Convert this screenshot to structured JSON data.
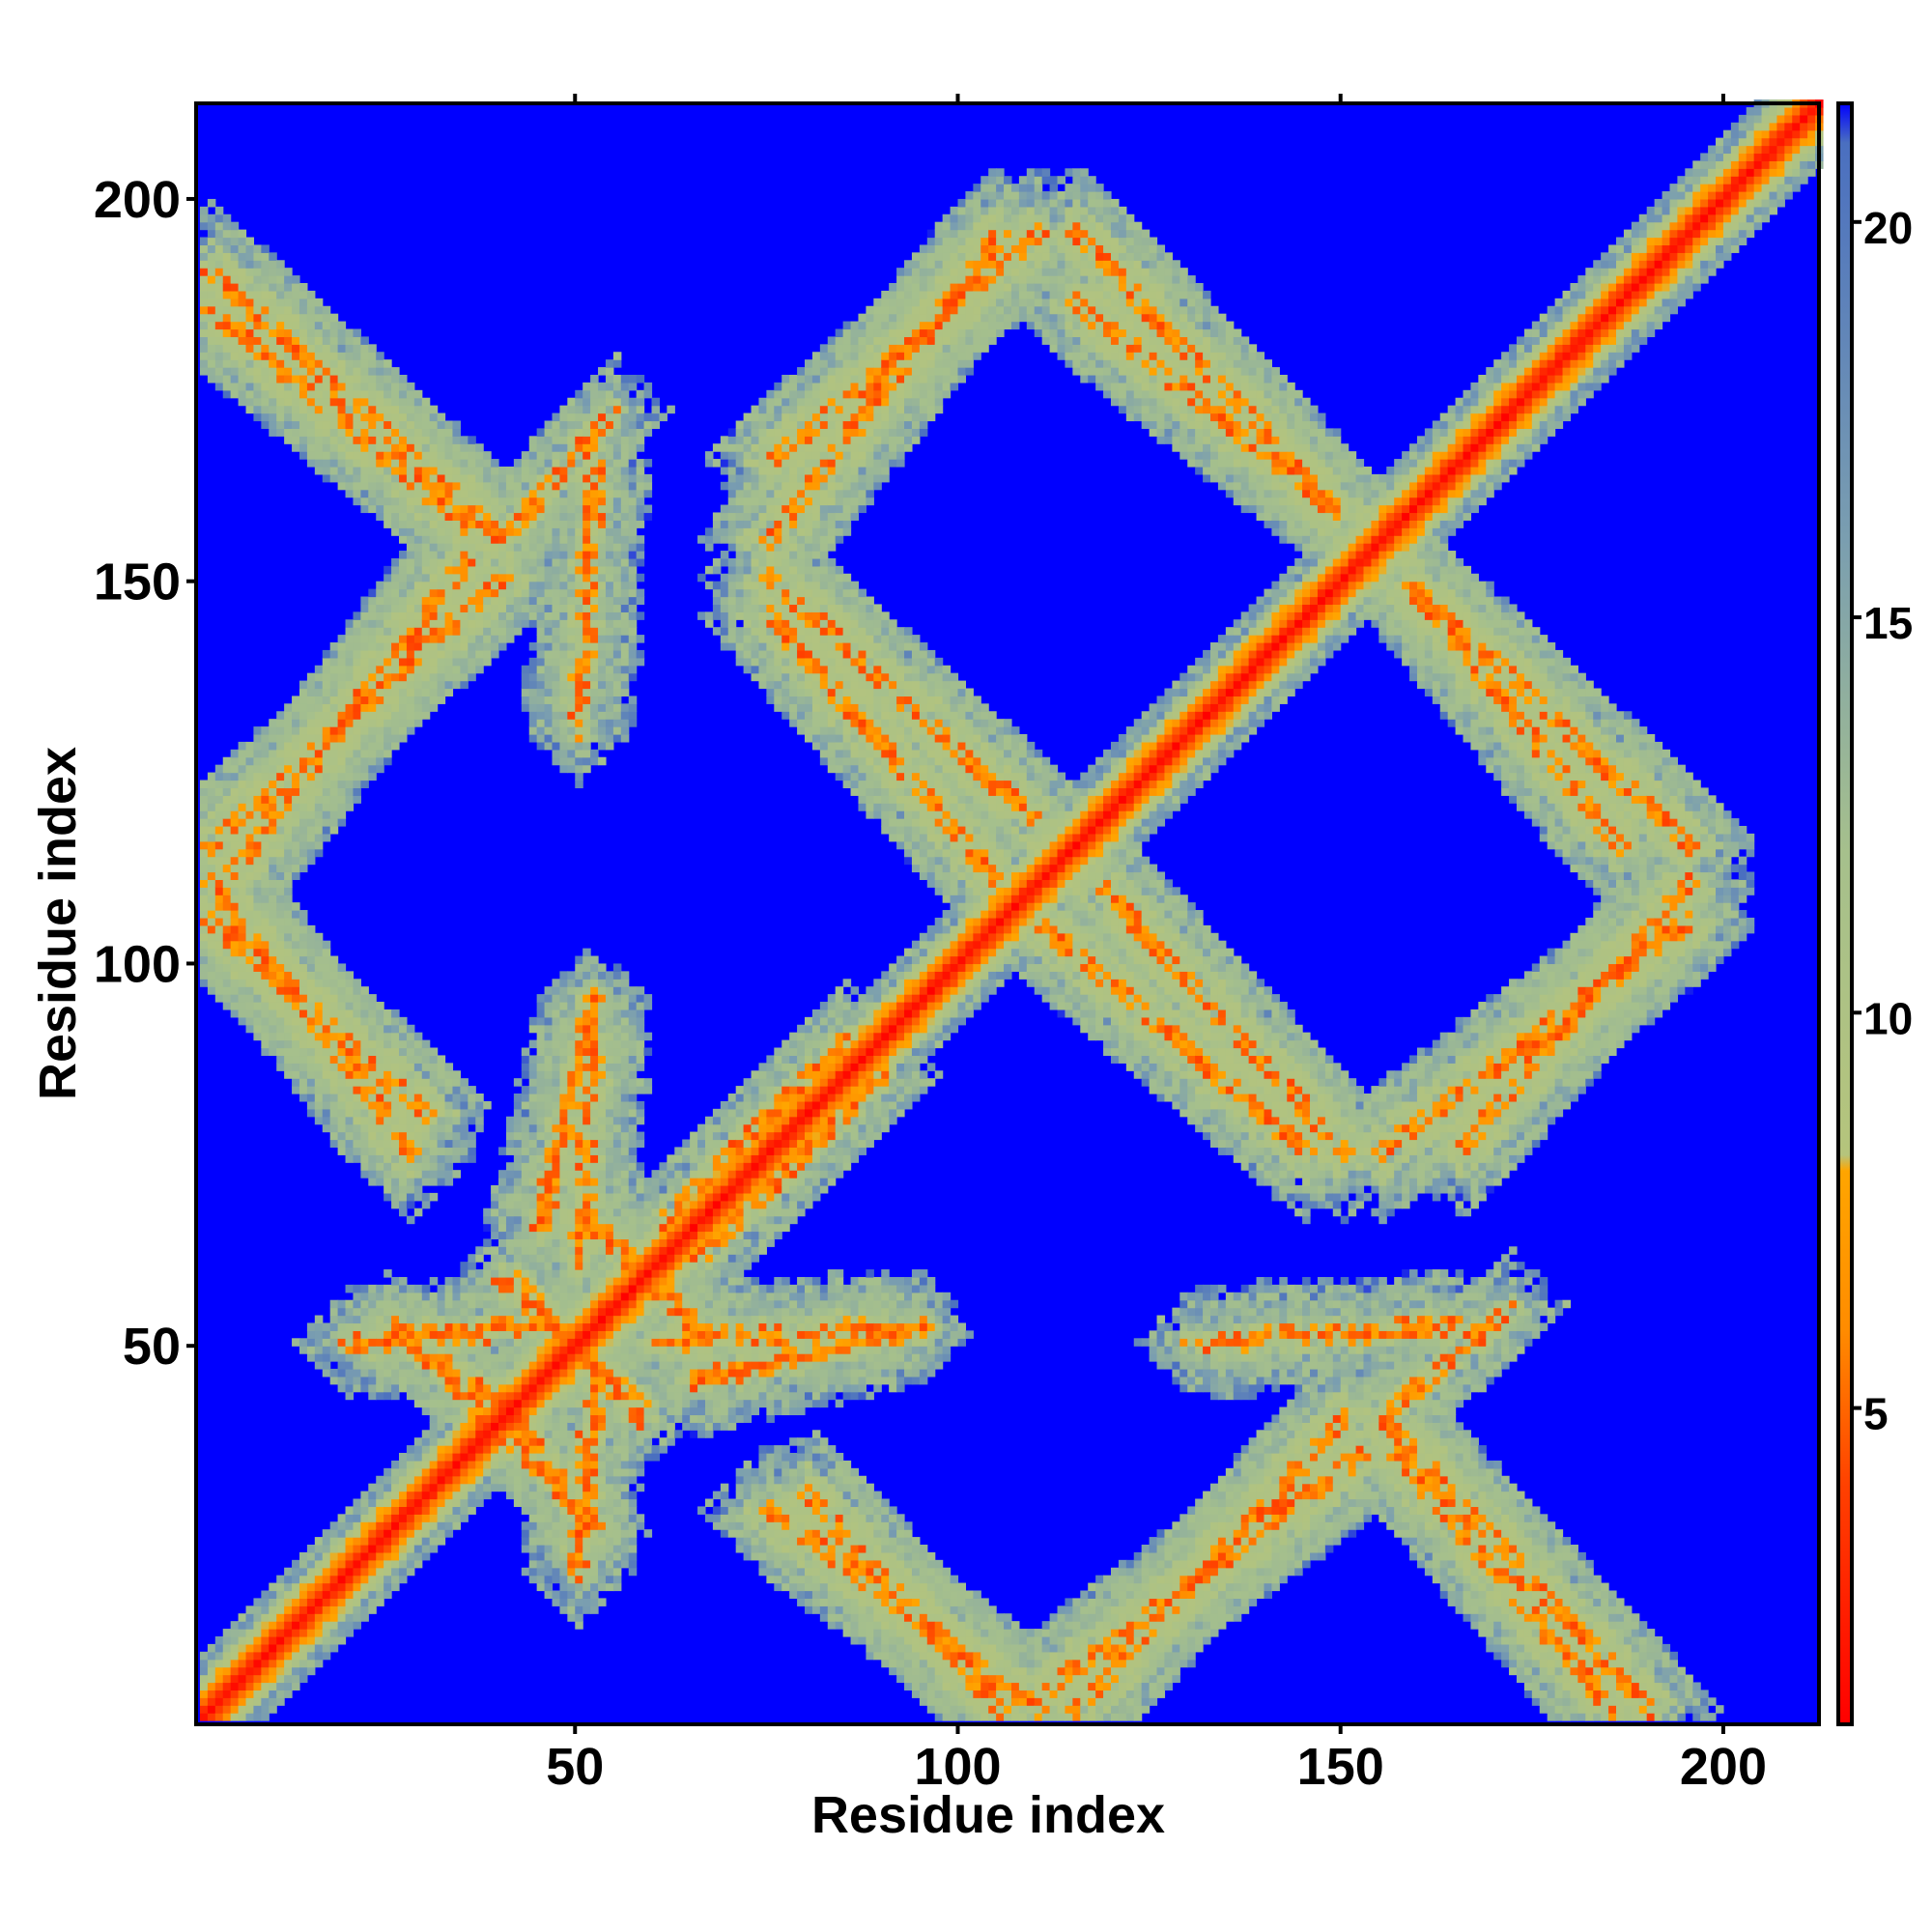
{
  "chart_data": {
    "type": "heatmap",
    "title": "",
    "xlabel": "Residue index",
    "ylabel": "Residue index",
    "n_residues": 212,
    "xlim": [
      1,
      212
    ],
    "ylim": [
      1,
      212
    ],
    "x_ticks": [
      50,
      100,
      150,
      200
    ],
    "y_ticks": [
      50,
      100,
      150,
      200
    ],
    "colorbar": {
      "range": [
        1,
        21.5
      ],
      "ticks": [
        5,
        10,
        15,
        20
      ],
      "stops": [
        {
          "value": 1,
          "color": "#ff0000"
        },
        {
          "value": 4,
          "color": "#ff4000"
        },
        {
          "value": 6,
          "color": "#ff8c00"
        },
        {
          "value": 8,
          "color": "#ffa500"
        },
        {
          "value": 8.2,
          "color": "#b5c47c"
        },
        {
          "value": 12,
          "color": "#a6c08c"
        },
        {
          "value": 16,
          "color": "#7a9eb0"
        },
        {
          "value": 21,
          "color": "#4a6fc0"
        },
        {
          "value": 21.5,
          "color": "#0000ff"
        }
      ]
    },
    "background_value": 21.5,
    "diagonal_band": {
      "core_width": 2,
      "band_width": 8
    },
    "contact_segments": [
      {
        "kind": "anti",
        "from": [
          1,
          186
        ],
        "to": [
          35,
          157
        ],
        "width": 4
      },
      {
        "kind": "anti",
        "from": [
          1,
          106
        ],
        "to": [
          30,
          80
        ],
        "width": 4
      },
      {
        "kind": "anti",
        "from": [
          75,
          150
        ],
        "to": [
          110,
          118
        ],
        "width": 4
      },
      {
        "kind": "anti",
        "from": [
          115,
          186
        ],
        "to": [
          150,
          158
        ],
        "width": 4
      },
      {
        "kind": "anti",
        "from": [
          110,
          105
        ],
        "to": [
          145,
          75
        ],
        "width": 4
      },
      {
        "kind": "anti",
        "from": [
          160,
          148
        ],
        "to": [
          195,
          115
        ],
        "width": 4
      },
      {
        "kind": "anti",
        "from": [
          75,
          28
        ],
        "to": [
          110,
          2
        ],
        "width": 4
      },
      {
        "kind": "anti",
        "from": [
          155,
          40
        ],
        "to": [
          190,
          2
        ],
        "width": 4
      },
      {
        "kind": "anti",
        "from": [
          25,
          52
        ],
        "to": [
          40,
          42
        ],
        "width": 2
      },
      {
        "kind": "anti",
        "from": [
          40,
          58
        ],
        "to": [
          58,
          42
        ],
        "width": 2
      },
      {
        "kind": "anti",
        "from": [
          50,
          68
        ],
        "to": [
          65,
          52
        ],
        "width": 2
      },
      {
        "kind": "anti",
        "from": [
          40,
          38
        ],
        "to": [
          52,
          26
        ],
        "width": 2
      },
      {
        "kind": "par",
        "from": [
          5,
          112
        ],
        "to": [
          35,
          152
        ],
        "width": 4
      },
      {
        "kind": "par",
        "from": [
          75,
          155
        ],
        "to": [
          105,
          195
        ],
        "width": 4
      },
      {
        "kind": "par",
        "from": [
          165,
          75
        ],
        "to": [
          195,
          110
        ],
        "width": 4
      },
      {
        "kind": "par",
        "from": [
          115,
          2
        ],
        "to": [
          150,
          40
        ],
        "width": 4
      },
      {
        "kind": "par",
        "from": [
          45,
          65
        ],
        "to": [
          52,
          95
        ],
        "width": 2
      },
      {
        "kind": "par",
        "from": [
          40,
          155
        ],
        "to": [
          55,
          172
        ],
        "width": 2
      },
      {
        "kind": "par",
        "from": [
          20,
          50
        ],
        "to": [
          45,
          52
        ],
        "width": 2
      },
      {
        "kind": "par",
        "from": [
          60,
          50
        ],
        "to": [
          90,
          52
        ],
        "width": 2
      },
      {
        "kind": "par",
        "from": [
          130,
          50
        ],
        "to": [
          165,
          52
        ],
        "width": 2
      },
      {
        "kind": "par",
        "from": [
          60,
          65
        ],
        "to": [
          85,
          90
        ],
        "width": 2
      }
    ]
  }
}
